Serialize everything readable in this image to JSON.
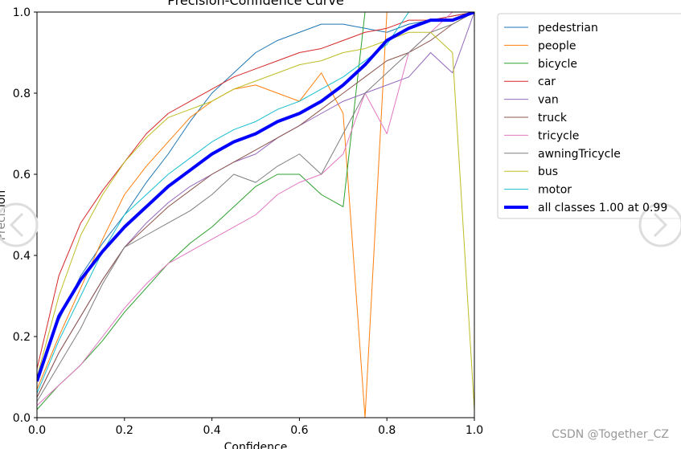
{
  "chart_data": {
    "type": "line",
    "title": "Precision-Confidence Curve",
    "xlabel": "Confidence",
    "ylabel": "Precision",
    "x": [
      0,
      0.05,
      0.1,
      0.15,
      0.2,
      0.25,
      0.3,
      0.35,
      0.4,
      0.45,
      0.5,
      0.55,
      0.6,
      0.65,
      0.7,
      0.75,
      0.8,
      0.85,
      0.9,
      0.95,
      1.0
    ],
    "series": [
      {
        "name": "pedestrian",
        "color": "#1f77b4",
        "width": 1,
        "values": [
          0.1,
          0.24,
          0.35,
          0.43,
          0.5,
          0.58,
          0.65,
          0.73,
          0.8,
          0.85,
          0.9,
          0.93,
          0.95,
          0.97,
          0.97,
          0.96,
          0.95,
          0.97,
          0.98,
          0.99,
          1.0
        ]
      },
      {
        "name": "people",
        "color": "#ff7f0e",
        "width": 1,
        "values": [
          0.07,
          0.2,
          0.32,
          0.44,
          0.55,
          0.62,
          0.68,
          0.74,
          0.78,
          0.81,
          0.82,
          0.8,
          0.78,
          0.85,
          0.75,
          0.0,
          1.0,
          1.0,
          1.0,
          1.0,
          1.0
        ]
      },
      {
        "name": "bicycle",
        "color": "#2ca02c",
        "width": 1,
        "values": [
          0.02,
          0.08,
          0.13,
          0.19,
          0.26,
          0.32,
          0.38,
          0.43,
          0.47,
          0.52,
          0.57,
          0.6,
          0.6,
          0.55,
          0.52,
          1.0,
          1.0,
          1.0,
          1.0,
          1.0,
          1.0
        ]
      },
      {
        "name": "car",
        "color": "#d62728",
        "width": 1,
        "values": [
          0.12,
          0.35,
          0.48,
          0.56,
          0.63,
          0.7,
          0.75,
          0.78,
          0.81,
          0.84,
          0.86,
          0.88,
          0.9,
          0.91,
          0.93,
          0.95,
          0.96,
          0.98,
          0.98,
          0.99,
          1.0
        ]
      },
      {
        "name": "van",
        "color": "#9467bd",
        "width": 1,
        "values": [
          0.05,
          0.16,
          0.25,
          0.34,
          0.42,
          0.48,
          0.53,
          0.57,
          0.6,
          0.63,
          0.65,
          0.69,
          0.72,
          0.75,
          0.78,
          0.8,
          0.82,
          0.84,
          0.9,
          0.85,
          1.0
        ]
      },
      {
        "name": "truck",
        "color": "#8c564b",
        "width": 1,
        "values": [
          0.05,
          0.16,
          0.25,
          0.34,
          0.42,
          0.47,
          0.52,
          0.56,
          0.6,
          0.63,
          0.66,
          0.69,
          0.72,
          0.76,
          0.8,
          0.84,
          0.88,
          0.9,
          0.93,
          0.97,
          1.0
        ]
      },
      {
        "name": "tricycle",
        "color": "#e377c2",
        "width": 1,
        "values": [
          0.03,
          0.08,
          0.13,
          0.2,
          0.27,
          0.33,
          0.38,
          0.41,
          0.44,
          0.47,
          0.5,
          0.55,
          0.58,
          0.6,
          0.65,
          0.8,
          0.7,
          0.9,
          0.95,
          1.0,
          1.0
        ]
      },
      {
        "name": "awningTricycle",
        "color": "#7f7f7f",
        "width": 1,
        "values": [
          0.04,
          0.13,
          0.22,
          0.33,
          0.42,
          0.45,
          0.48,
          0.51,
          0.55,
          0.6,
          0.58,
          0.62,
          0.65,
          0.6,
          0.7,
          0.8,
          0.85,
          0.9,
          0.95,
          0.97,
          1.0
        ]
      },
      {
        "name": "bus",
        "color": "#bcbd22",
        "width": 1,
        "values": [
          0.1,
          0.3,
          0.45,
          0.55,
          0.63,
          0.69,
          0.74,
          0.76,
          0.78,
          0.81,
          0.83,
          0.85,
          0.87,
          0.88,
          0.9,
          0.91,
          0.93,
          0.95,
          0.95,
          0.9,
          0.02
        ]
      },
      {
        "name": "motor",
        "color": "#17becf",
        "width": 1,
        "values": [
          0.06,
          0.19,
          0.3,
          0.41,
          0.5,
          0.55,
          0.6,
          0.64,
          0.68,
          0.71,
          0.73,
          0.76,
          0.78,
          0.81,
          0.84,
          0.88,
          0.92,
          1.0,
          1.0,
          1.0,
          1.0
        ]
      },
      {
        "name": "all classes 1.00 at 0.99",
        "color": "#0000ff",
        "width": 4,
        "values": [
          0.09,
          0.25,
          0.34,
          0.41,
          0.47,
          0.52,
          0.57,
          0.61,
          0.65,
          0.68,
          0.7,
          0.73,
          0.75,
          0.78,
          0.82,
          0.87,
          0.93,
          0.96,
          0.98,
          0.98,
          1.0
        ]
      }
    ],
    "xlim": [
      0,
      1
    ],
    "ylim": [
      0,
      1
    ],
    "xticks": [
      {
        "value": 0,
        "label": "0.0"
      },
      0.2,
      0.4,
      0.6,
      0.8,
      {
        "value": 1,
        "label": "1.0"
      }
    ],
    "yticks": [
      {
        "value": 0,
        "label": "0.0"
      },
      0.2,
      0.4,
      0.6,
      0.8,
      {
        "value": 1,
        "label": "1.0"
      }
    ],
    "legend": "upper right outside"
  },
  "watermark": "CSDN @Together_CZ"
}
